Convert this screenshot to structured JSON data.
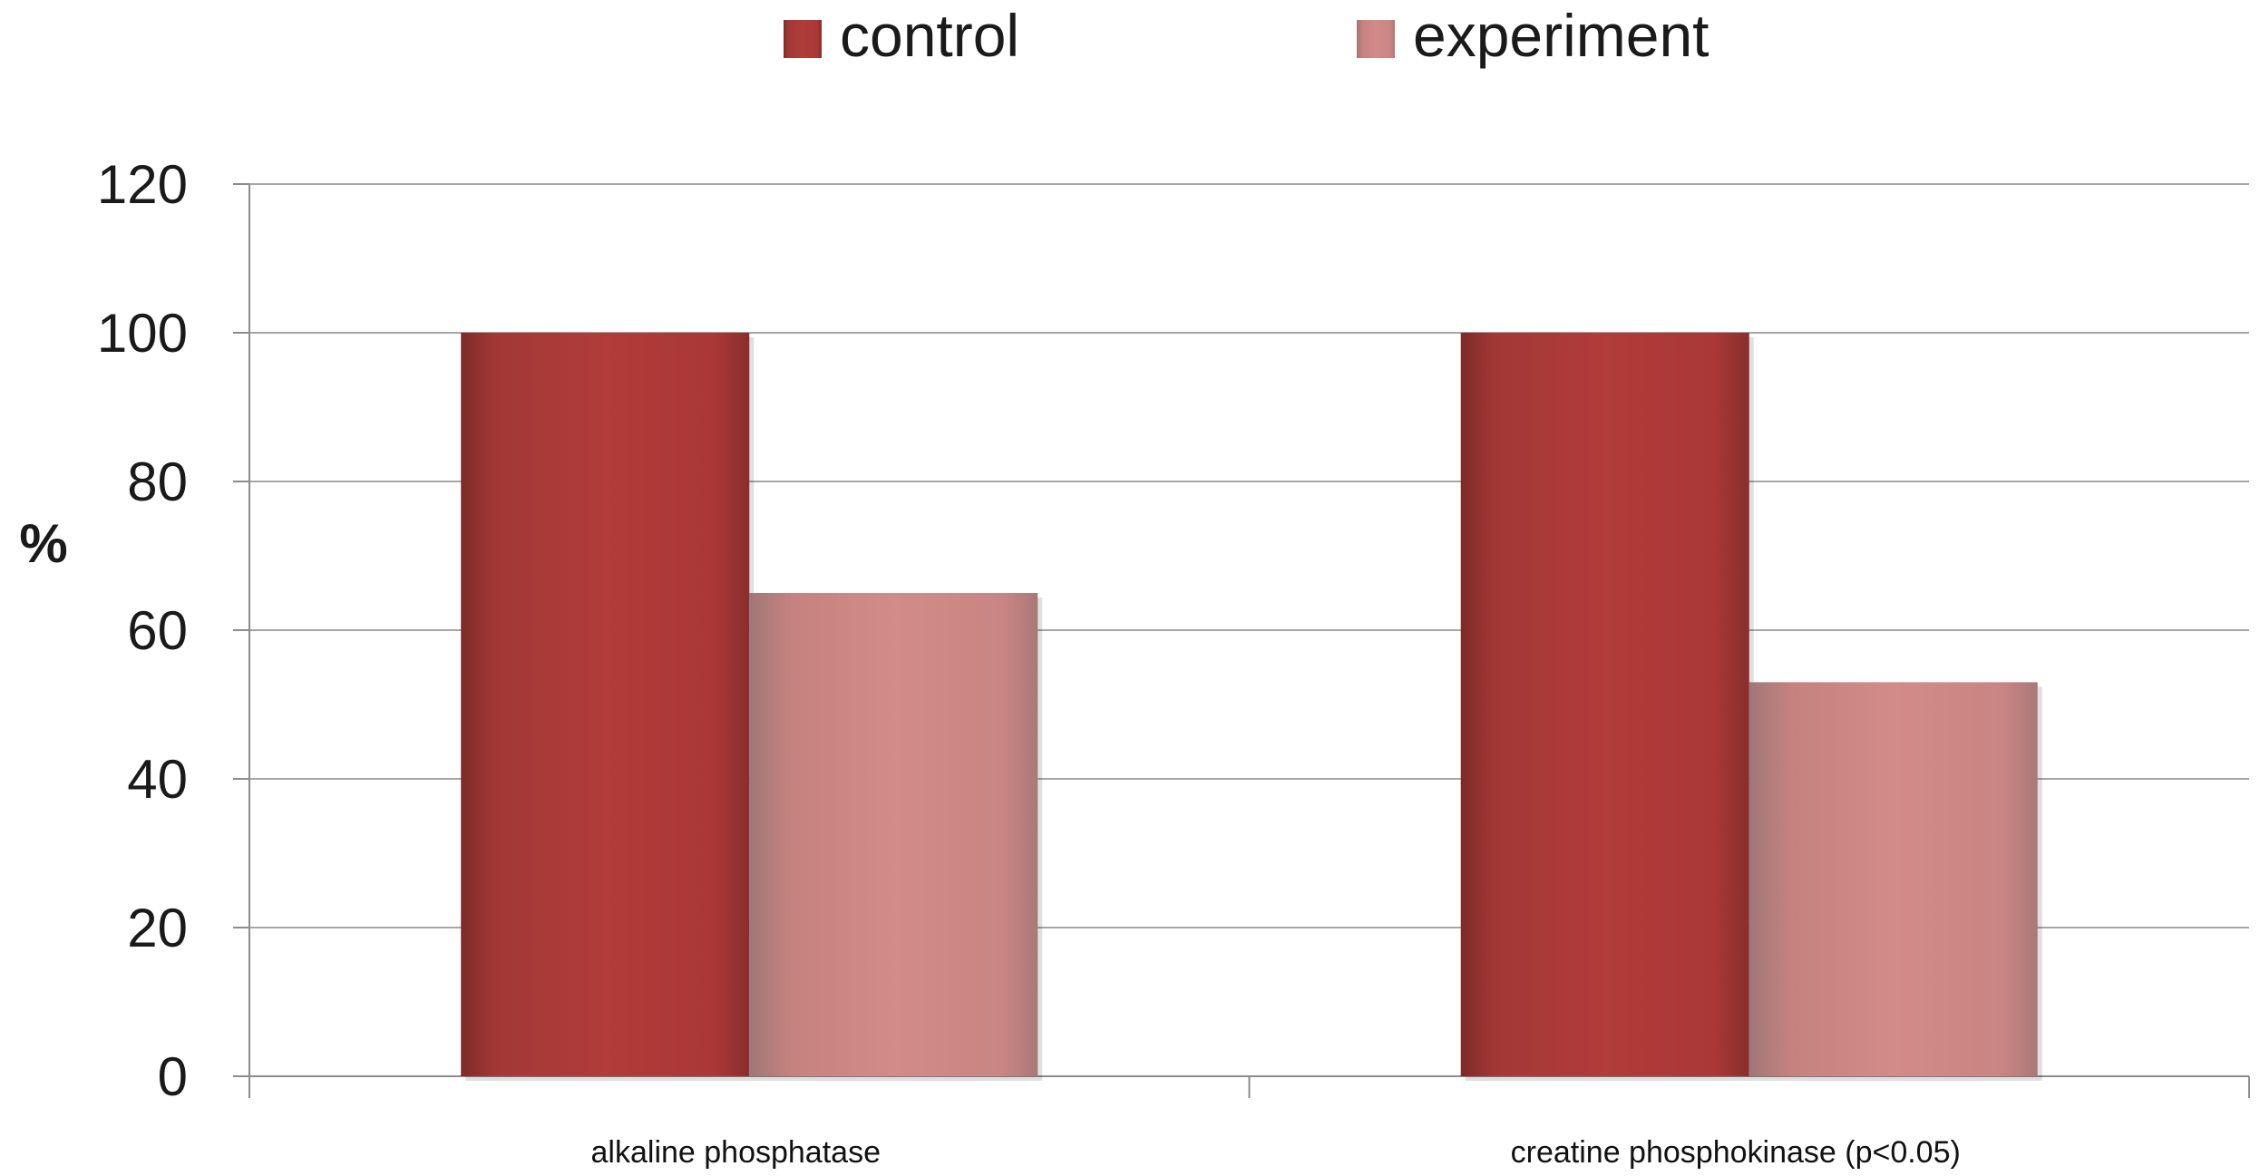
{
  "chart_data": {
    "type": "bar",
    "title": "",
    "xlabel": "",
    "ylabel": "%",
    "ylim": [
      0,
      120
    ],
    "yticks": [
      0,
      20,
      40,
      60,
      80,
      100,
      120
    ],
    "grid": true,
    "legend_position": "top-center",
    "categories": [
      "alkaline phosphatase",
      "creatine phosphokinase (p<0.05)"
    ],
    "series": [
      {
        "name": "control",
        "values": [
          100,
          100
        ],
        "color": "#B03A38"
      },
      {
        "name": "experiment",
        "values": [
          65,
          53
        ],
        "color": "#D08A88"
      }
    ]
  }
}
